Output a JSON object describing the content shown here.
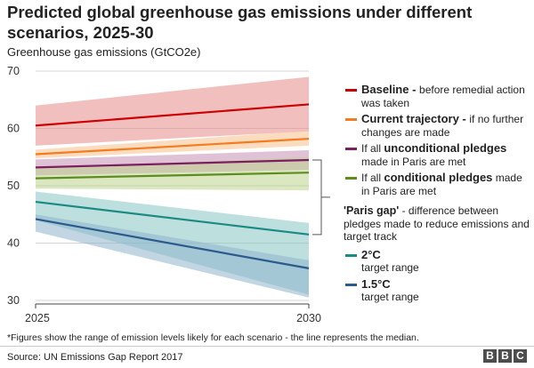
{
  "title": "Predicted global greenhouse gas emissions under different scenarios, 2025-30",
  "chart_data": {
    "type": "line",
    "title": "Predicted global greenhouse gas emissions under different scenarios, 2025-30",
    "ylabel": "Greenhouse gas emissions (GtCO2e)",
    "xlabel": "",
    "x": [
      2025,
      2030
    ],
    "x_ticks": [
      "2025",
      "2030"
    ],
    "ylim": [
      30,
      70
    ],
    "y_ticks": [
      30,
      40,
      50,
      60,
      70
    ],
    "grid": "horizontal",
    "legend_position": "right",
    "series": [
      {
        "name": "Baseline",
        "color": "#cc0000",
        "band_color": "#e88a8a",
        "median": [
          60.5,
          64.2
        ],
        "low": [
          57.0,
          59.5
        ],
        "high": [
          64.0,
          69.0
        ]
      },
      {
        "name": "Current trajectory",
        "color": "#f47c20",
        "band_color": "#f9c08a",
        "median": [
          55.5,
          58.2
        ],
        "low": [
          54.8,
          57.0
        ],
        "high": [
          56.3,
          59.6
        ]
      },
      {
        "name": "If all unconditional pledges made in Paris are met",
        "color": "#7b1f5e",
        "band_color": "#c790b4",
        "median": [
          53.2,
          54.5
        ],
        "low": [
          51.8,
          52.8
        ],
        "high": [
          54.6,
          56.2
        ]
      },
      {
        "name": "If all conditional pledges made in Paris are met",
        "color": "#5c8d1e",
        "band_color": "#bcd48e",
        "median": [
          51.3,
          52.3
        ],
        "low": [
          49.5,
          49.2
        ],
        "high": [
          53.0,
          55.0
        ]
      },
      {
        "name": "2°C target range",
        "color": "#1a8a84",
        "band_color": "#86c5c1",
        "median": [
          47.2,
          41.5
        ],
        "low": [
          44.0,
          31.0
        ],
        "high": [
          49.0,
          43.5
        ]
      },
      {
        "name": "1.5°C target range",
        "color": "#2b5b8c",
        "band_color": "#8eb2cc",
        "median": [
          44.2,
          35.6
        ],
        "low": [
          42.0,
          30.5
        ],
        "high": [
          45.0,
          37.0
        ]
      }
    ],
    "paris_gap_bracket": [
      41.5,
      54.5
    ]
  },
  "legend": {
    "items": [
      {
        "bold": "Baseline - ",
        "text": "before remedial action was taken",
        "color": "#cc0000"
      },
      {
        "bold": "Current trajectory - ",
        "text": "if no further changes are made",
        "color": "#f47c20"
      },
      {
        "pre": "If all ",
        "bold": "unconditional pledges",
        "text": " made in Paris are met",
        "color": "#7b1f5e"
      },
      {
        "pre": "If all ",
        "bold": "conditional pledges",
        "text": " made in Paris are met",
        "color": "#5c8d1e"
      }
    ],
    "gap": {
      "bold": "'Paris gap'",
      "text": " - difference between pledges made to reduce emissions and target track"
    },
    "targets": [
      {
        "bold": "2°C",
        "text": "target range",
        "color": "#1a8a84"
      },
      {
        "bold": "1.5°C",
        "text": "target range",
        "color": "#2b5b8c"
      }
    ]
  },
  "footnote": "*Figures show the range of emission levels likely for each scenario - the line represents the median.",
  "source": "Source: UN Emissions Gap Report 2017",
  "brand": [
    "B",
    "B",
    "C"
  ]
}
